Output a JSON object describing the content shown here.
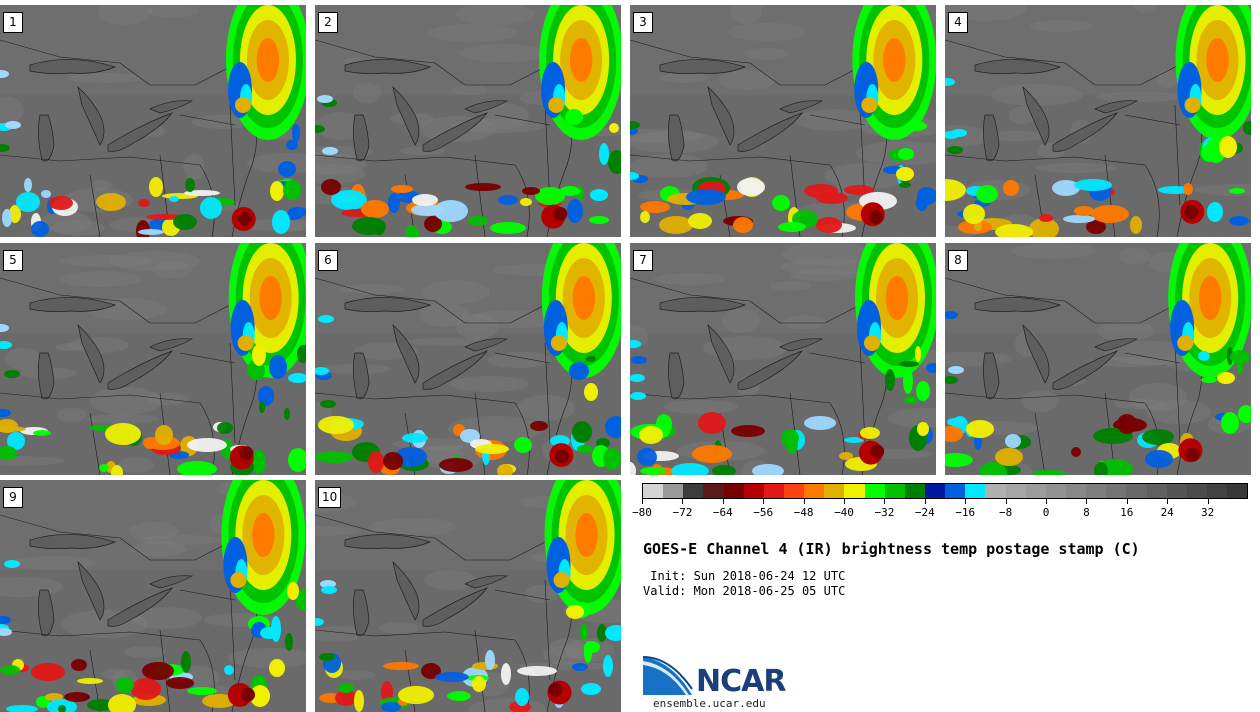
{
  "panels": [
    "1",
    "2",
    "3",
    "4",
    "5",
    "6",
    "7",
    "8",
    "9",
    "10"
  ],
  "colorbar": {
    "colors": [
      "#d4d4d4",
      "#9a9a9a",
      "#3c3c3c",
      "#5a1a1a",
      "#780000",
      "#b40000",
      "#e01818",
      "#ff4010",
      "#ff7800",
      "#e0b000",
      "#f0f000",
      "#00ff00",
      "#00c000",
      "#008000",
      "#0018a0",
      "#0060e0",
      "#00e8ff",
      "#b0b0b0",
      "#a6a6a6",
      "#9c9c9c",
      "#929292",
      "#888888",
      "#7e7e7e",
      "#747474",
      "#6a6a6a",
      "#606060",
      "#565656",
      "#4c4c4c",
      "#424242",
      "#383838"
    ],
    "tick_labels": [
      "−80",
      "−72",
      "−64",
      "−56",
      "−48",
      "−40",
      "−32",
      "−24",
      "−16",
      "−8",
      "0",
      "8",
      "16",
      "24",
      "32"
    ]
  },
  "title": "GOES-E Channel 4 (IR) brightness temp postage stamp (C)",
  "init": " Init: Sun 2018-06-24 12 UTC",
  "valid": "Valid: Mon 2018-06-25 05 UTC",
  "logo": {
    "name": "NCAR"
  },
  "site": "ensemble.ucar.edu"
}
